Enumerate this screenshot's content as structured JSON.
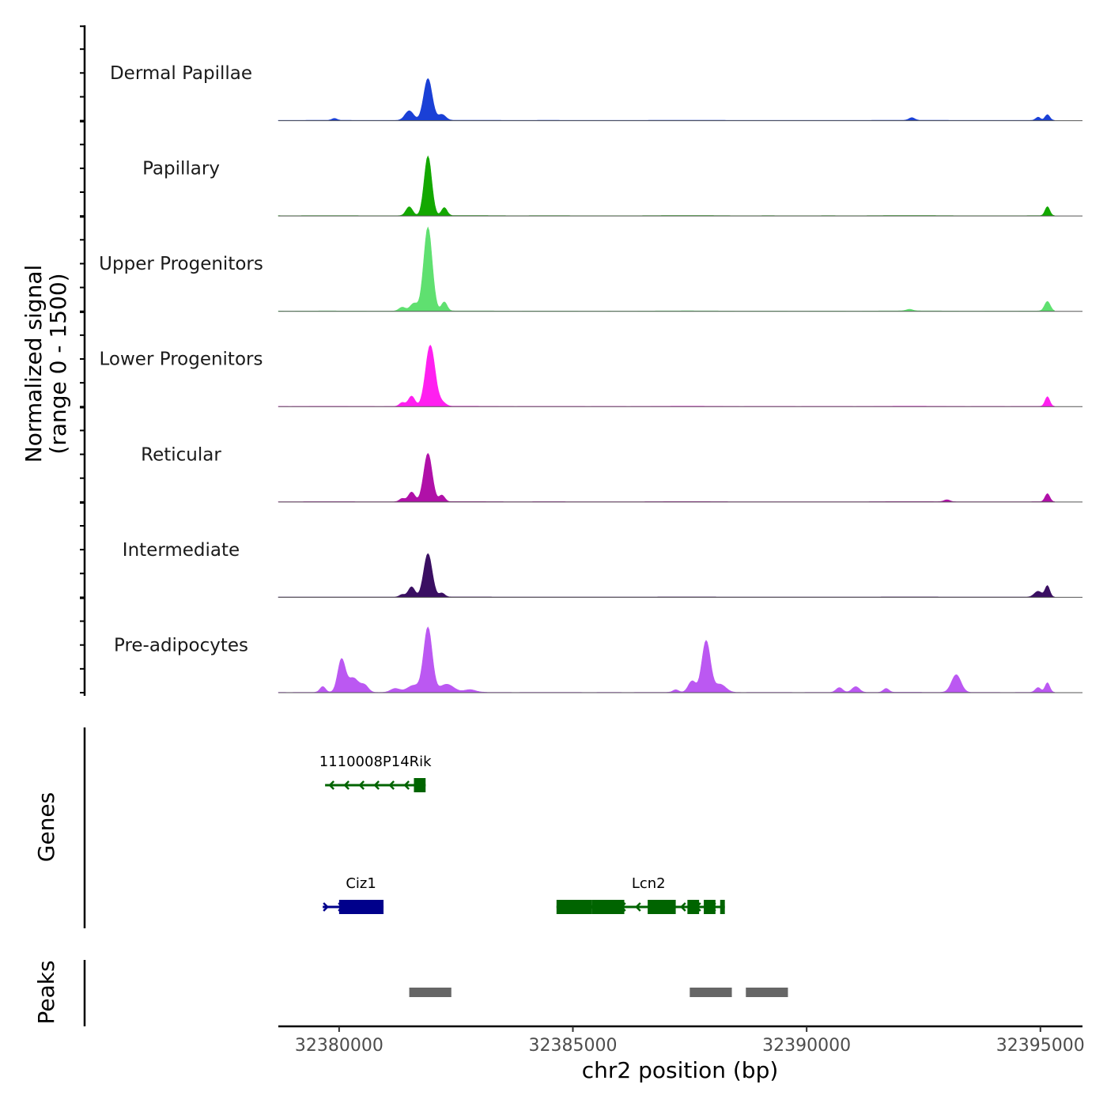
{
  "chart_data": {
    "type": "area",
    "title": "",
    "xlabel": "chr2 position (bp)",
    "ylabel": "Normalized signal",
    "ylabel_sub": "(range 0 - 1500)",
    "y_range": [
      0,
      1500
    ],
    "xlim": [
      32378700,
      32395900
    ],
    "x_ticks": [
      32380000,
      32385000,
      32390000,
      32395000
    ],
    "x_tick_labels": [
      "32380000",
      "32385000",
      "32390000",
      "32395000"
    ],
    "coverage_tracks": [
      {
        "name": "Dermal Papillae",
        "color": "#1a40d6",
        "peaks": [
          [
            32379900,
            60,
            55
          ],
          [
            32381500,
            300,
            90
          ],
          [
            32381900,
            1300,
            90
          ],
          [
            32382200,
            180,
            80
          ],
          [
            32392250,
            80,
            60
          ],
          [
            32394950,
            100,
            50
          ],
          [
            32395150,
            180,
            50
          ]
        ]
      },
      {
        "name": "Papillary",
        "color": "#13a800",
        "peaks": [
          [
            32381500,
            280,
            70
          ],
          [
            32381900,
            1850,
            80
          ],
          [
            32382250,
            250,
            60
          ],
          [
            32395150,
            280,
            50
          ]
        ]
      },
      {
        "name": "Upper Progenitors",
        "color": "#5fe070",
        "peaks": [
          [
            32381350,
            120,
            70
          ],
          [
            32381600,
            240,
            80
          ],
          [
            32381900,
            2600,
            90
          ],
          [
            32382250,
            280,
            60
          ],
          [
            32392200,
            50,
            70
          ],
          [
            32395150,
            300,
            60
          ]
        ]
      },
      {
        "name": "Lower Progenitors",
        "color": "#ff20f0",
        "peaks": [
          [
            32381350,
            120,
            60
          ],
          [
            32381550,
            320,
            70
          ],
          [
            32381950,
            1900,
            100
          ],
          [
            32382200,
            120,
            80
          ],
          [
            32395150,
            300,
            50
          ]
        ]
      },
      {
        "name": "Reticular",
        "color": "#b010a8",
        "peaks": [
          [
            32381350,
            100,
            60
          ],
          [
            32381550,
            300,
            70
          ],
          [
            32381900,
            1500,
            90
          ],
          [
            32382200,
            200,
            60
          ],
          [
            32393000,
            60,
            60
          ],
          [
            32395150,
            250,
            50
          ]
        ]
      },
      {
        "name": "Intermediate",
        "color": "#3a0f62",
        "peaks": [
          [
            32381350,
            80,
            60
          ],
          [
            32381550,
            320,
            70
          ],
          [
            32381900,
            1350,
            90
          ],
          [
            32382200,
            120,
            60
          ],
          [
            32394950,
            180,
            80
          ],
          [
            32395150,
            350,
            50
          ]
        ]
      },
      {
        "name": "Pre-adipocytes",
        "color": "#bb58f2",
        "peaks": [
          [
            32379650,
            180,
            60
          ],
          [
            32380050,
            1000,
            80
          ],
          [
            32380300,
            450,
            120
          ],
          [
            32380550,
            200,
            80
          ],
          [
            32381200,
            120,
            100
          ],
          [
            32381600,
            220,
            140
          ],
          [
            32381900,
            2000,
            90
          ],
          [
            32382300,
            250,
            150
          ],
          [
            32382800,
            80,
            120
          ],
          [
            32387200,
            80,
            60
          ],
          [
            32387550,
            350,
            80
          ],
          [
            32387850,
            1600,
            90
          ],
          [
            32388150,
            250,
            120
          ],
          [
            32390700,
            150,
            70
          ],
          [
            32391050,
            180,
            80
          ],
          [
            32391700,
            120,
            60
          ],
          [
            32393200,
            550,
            100
          ],
          [
            32394950,
            150,
            60
          ],
          [
            32395150,
            300,
            50
          ]
        ]
      }
    ],
    "genes": [
      {
        "name": "1110008P14Rik",
        "strand": "-",
        "color": "#006400",
        "row": 1,
        "start": 32379700,
        "end": 32381850,
        "exons": [
          [
            32381600,
            32381850
          ]
        ]
      },
      {
        "name": "Ciz1",
        "strand": "+",
        "color": "#00008b",
        "row": 2,
        "start": 32379650,
        "end": 32380950,
        "exons": [
          [
            32380000,
            32380950
          ]
        ]
      },
      {
        "name": "Lcn2",
        "strand": "-",
        "color": "#006400",
        "row": 2,
        "start": 32384650,
        "end": 32388250,
        "exons": [
          [
            32384650,
            32385400
          ],
          [
            32385400,
            32386100
          ],
          [
            32386600,
            32387200
          ],
          [
            32387450,
            32387700
          ],
          [
            32387800,
            32388050
          ],
          [
            32388150,
            32388250
          ]
        ]
      }
    ],
    "peaks": [
      {
        "start": 32381500,
        "end": 32382400
      },
      {
        "start": 32387500,
        "end": 32388400
      },
      {
        "start": 32388700,
        "end": 32389600
      }
    ],
    "panel_titles": {
      "genes": "Genes",
      "peaks": "Peaks"
    }
  }
}
